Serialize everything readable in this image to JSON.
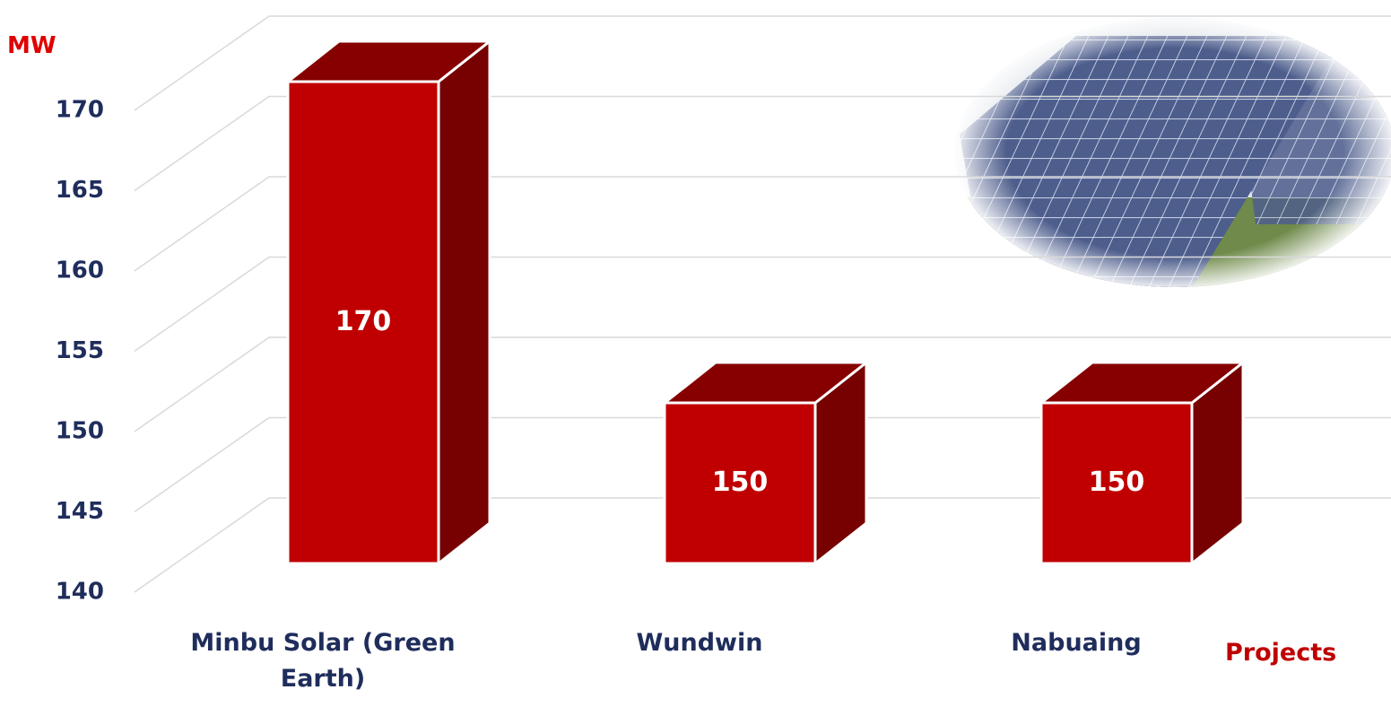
{
  "chart_data": {
    "type": "bar3d",
    "y_label": "MW",
    "x_label": "Projects",
    "categories": [
      "Minbu Solar (Green Earth)",
      "Wundwin",
      "Nabuaing"
    ],
    "values": [
      170,
      150,
      150
    ],
    "color": "#c00000",
    "ylim": [
      140,
      170
    ],
    "yticks": [
      140,
      145,
      150,
      155,
      160,
      165,
      170
    ],
    "grid": true
  }
}
